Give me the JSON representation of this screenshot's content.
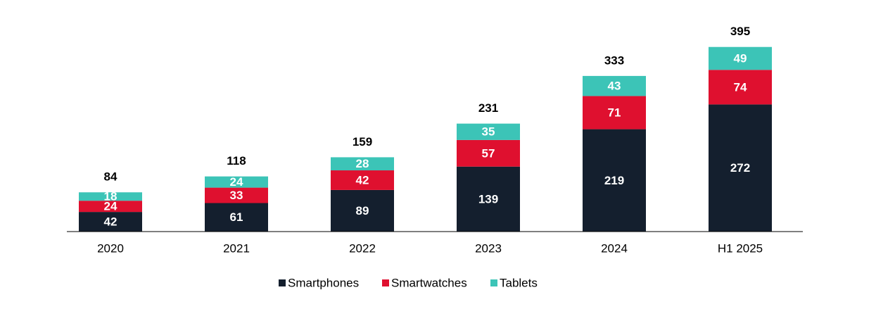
{
  "chart_data": {
    "type": "bar",
    "stacked": true,
    "categories": [
      "2020",
      "2021",
      "2022",
      "2023",
      "2024",
      "H1 2025"
    ],
    "series": [
      {
        "name": "Smartphones",
        "color": "#141f2e",
        "values": [
          42,
          61,
          89,
          139,
          219,
          272
        ]
      },
      {
        "name": "Smartwatches",
        "color": "#df102f",
        "values": [
          24,
          33,
          42,
          57,
          71,
          74
        ]
      },
      {
        "name": "Tablets",
        "color": "#3cc4b7",
        "values": [
          18,
          24,
          28,
          35,
          43,
          49
        ]
      }
    ],
    "totals": [
      84,
      118,
      159,
      231,
      333,
      395
    ],
    "ylim": [
      0,
      400
    ],
    "grid": false,
    "legend_position": "bottom"
  }
}
